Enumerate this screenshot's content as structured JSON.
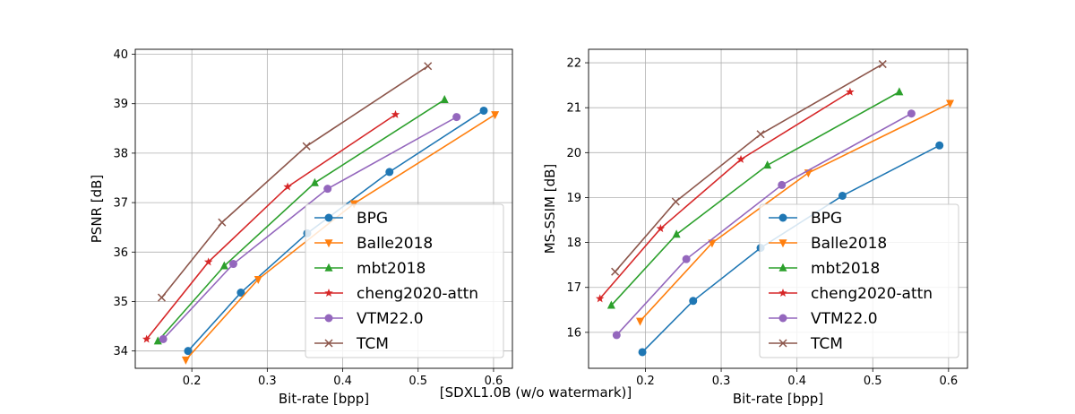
{
  "caption": "[SDXL1.0B (w/o watermark)]",
  "chart_data": [
    {
      "type": "line",
      "xlabel": "Bit-rate [bpp]",
      "ylabel": "PSNR [dB]",
      "xlim": [
        0.125,
        0.625
      ],
      "ylim": [
        33.65,
        40.1
      ],
      "xticks": [
        "0.2",
        "0.3",
        "0.4",
        "0.5",
        "0.6"
      ],
      "yticks": [
        "34",
        "35",
        "36",
        "37",
        "38",
        "39",
        "40"
      ],
      "grid": true,
      "legend": "lower-right",
      "series": [
        {
          "name": "BPG",
          "color": "#1f77b4",
          "marker": "circle",
          "x": [
            0.195,
            0.265,
            0.353,
            0.462,
            0.587
          ],
          "y": [
            34.0,
            35.18,
            36.38,
            37.62,
            38.86
          ]
        },
        {
          "name": "Balle2018",
          "color": "#ff7f0e",
          "marker": "triangle-down",
          "x": [
            0.192,
            0.288,
            0.415,
            0.602
          ],
          "y": [
            33.82,
            35.45,
            36.98,
            38.78
          ]
        },
        {
          "name": "mbt2018",
          "color": "#2ca02c",
          "marker": "triangle-up",
          "x": [
            0.155,
            0.243,
            0.363,
            0.535
          ],
          "y": [
            34.2,
            35.72,
            37.4,
            39.08
          ]
        },
        {
          "name": "cheng2020-attn",
          "color": "#d62728",
          "marker": "star",
          "x": [
            0.14,
            0.222,
            0.327,
            0.47
          ],
          "y": [
            34.24,
            35.8,
            37.32,
            38.78
          ]
        },
        {
          "name": "VTM22.0",
          "color": "#9467bd",
          "marker": "circle",
          "x": [
            0.162,
            0.255,
            0.38,
            0.551
          ],
          "y": [
            34.24,
            35.76,
            37.28,
            38.73
          ]
        },
        {
          "name": "TCM",
          "color": "#8c564b",
          "marker": "x",
          "x": [
            0.16,
            0.24,
            0.352,
            0.513
          ],
          "y": [
            35.08,
            36.6,
            38.14,
            39.76
          ]
        }
      ]
    },
    {
      "type": "line",
      "xlabel": "Bit-rate [bpp]",
      "ylabel": "MS-SSIM [dB]",
      "xlim": [
        0.125,
        0.625
      ],
      "ylim": [
        15.2,
        22.3
      ],
      "xticks": [
        "0.2",
        "0.3",
        "0.4",
        "0.5",
        "0.6"
      ],
      "yticks": [
        "16",
        "17",
        "18",
        "19",
        "20",
        "21",
        "22"
      ],
      "grid": true,
      "legend": "lower-right",
      "series": [
        {
          "name": "BPG",
          "color": "#1f77b4",
          "marker": "circle",
          "x": [
            0.196,
            0.263,
            0.352,
            0.46,
            0.588
          ],
          "y": [
            15.56,
            16.7,
            17.88,
            19.04,
            20.16
          ]
        },
        {
          "name": "Balle2018",
          "color": "#ff7f0e",
          "marker": "triangle-down",
          "x": [
            0.193,
            0.288,
            0.415,
            0.602
          ],
          "y": [
            16.25,
            17.99,
            19.55,
            21.1
          ]
        },
        {
          "name": "mbt2018",
          "color": "#2ca02c",
          "marker": "triangle-up",
          "x": [
            0.155,
            0.241,
            0.361,
            0.535
          ],
          "y": [
            16.6,
            18.18,
            19.72,
            21.35
          ]
        },
        {
          "name": "cheng2020-attn",
          "color": "#d62728",
          "marker": "star",
          "x": [
            0.14,
            0.22,
            0.326,
            0.47
          ],
          "y": [
            16.75,
            18.31,
            19.85,
            21.35
          ]
        },
        {
          "name": "VTM22.0",
          "color": "#9467bd",
          "marker": "circle",
          "x": [
            0.162,
            0.254,
            0.38,
            0.551
          ],
          "y": [
            15.94,
            17.63,
            19.28,
            20.87
          ]
        },
        {
          "name": "TCM",
          "color": "#8c564b",
          "marker": "x",
          "x": [
            0.16,
            0.24,
            0.352,
            0.513
          ],
          "y": [
            17.35,
            18.91,
            20.41,
            21.97
          ]
        }
      ]
    }
  ]
}
